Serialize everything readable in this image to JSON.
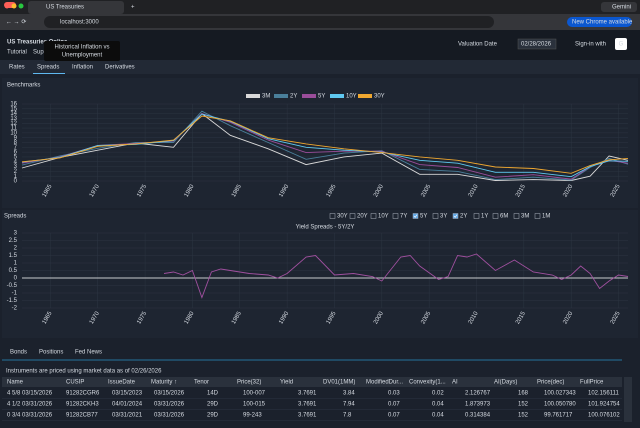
{
  "browser": {
    "tab_title": "US Treasuries",
    "new_tab": "+",
    "gemini": "Gemini",
    "url": "localhost:3000",
    "update_button": "New Chrome available"
  },
  "header": {
    "title": "US Treasuries Online",
    "links": [
      "Tutorial",
      "Supp"
    ],
    "tooltip": [
      "Historical Inflation vs",
      "Unemployment"
    ],
    "valuation_label": "Valuation Date",
    "valuation_date": "02/28/2026",
    "sign_in": "Sign-in with",
    "sign_in_button": "G"
  },
  "tabs": {
    "items": [
      "Rates",
      "Spreads",
      "Inflation",
      "Derivatives"
    ],
    "active": 1
  },
  "chart_data": [
    {
      "type": "line",
      "title": "Benchmarks",
      "x": [
        1962,
        1966,
        1970,
        1974,
        1978,
        1981,
        1984,
        1988,
        1992,
        1996,
        2000,
        2004,
        2008,
        2012,
        2016,
        2020,
        2022,
        2024,
        2026
      ],
      "xlim": [
        1962,
        2026
      ],
      "xticks": [
        1965,
        1970,
        1975,
        1980,
        1985,
        1990,
        1995,
        2000,
        2005,
        2010,
        2015,
        2020,
        2025
      ],
      "ylim": [
        0,
        16
      ],
      "yticks": [
        0,
        1,
        2,
        3,
        4,
        5,
        6,
        7,
        8,
        9,
        10,
        11,
        12,
        13,
        14,
        15,
        16
      ],
      "grid": true,
      "series": [
        {
          "name": "3M",
          "color": "#d9d9d9",
          "values": [
            2.7,
            4.9,
            6.4,
            7.9,
            7,
            14,
            9.5,
            6.7,
            3.4,
            5,
            5.8,
            1.4,
            1.4,
            0.1,
            0.3,
            0.1,
            1,
            5.2,
            4.3
          ]
        },
        {
          "name": "2Y",
          "color": "#4a7f9a",
          "values": [
            3.3,
            5.2,
            6.8,
            8,
            8,
            14.5,
            11.5,
            8,
            4.5,
            5.8,
            6.3,
            2.4,
            2,
            0.3,
            0.8,
            0.2,
            2.8,
            4.7,
            3.5
          ]
        },
        {
          "name": "5Y",
          "color": "#9a4d9a",
          "values": [
            3.7,
            5,
            7.4,
            7.8,
            8.3,
            14,
            12.2,
            8.5,
            5.9,
            6.2,
            6.2,
            3.4,
            2.8,
            0.8,
            1.3,
            0.4,
            3,
            4.3,
            3.7
          ]
        },
        {
          "name": "10Y",
          "color": "#5fc8f0",
          "values": [
            3.9,
            4.9,
            7.4,
            7.6,
            8.4,
            13.9,
            12.4,
            8.8,
            7,
            6.4,
            6,
            4.3,
            3.7,
            1.8,
            1.8,
            0.9,
            3,
            4.2,
            4.1
          ]
        },
        {
          "name": "30Y",
          "color": "#f0a830",
          "values": [
            4,
            4.8,
            7.2,
            7.7,
            8.5,
            13.5,
            12.5,
            9,
            7.7,
            6.7,
            5.9,
            5,
            4.3,
            2.9,
            2.6,
            1.6,
            3.2,
            4.4,
            4.7
          ]
        }
      ]
    },
    {
      "type": "line",
      "section": "Spreads",
      "title": "Yield Spreads - 5Y/2Y",
      "checkboxes": [
        {
          "label": "30Y",
          "checked": false
        },
        {
          "label": "20Y",
          "checked": false
        },
        {
          "label": "10Y",
          "checked": false
        },
        {
          "label": "7Y",
          "checked": false
        },
        {
          "label": "5Y",
          "checked": true
        },
        {
          "label": "3Y",
          "checked": false
        },
        {
          "label": "2Y",
          "checked": true
        },
        {
          "label": "1Y",
          "checked": false
        },
        {
          "label": "6M",
          "checked": false
        },
        {
          "label": "3M",
          "checked": false
        },
        {
          "label": "1M",
          "checked": false
        }
      ],
      "x": [
        1977,
        1978,
        1979,
        1980,
        1981,
        1982,
        1983,
        1984,
        1986,
        1988,
        1989,
        1990,
        1992,
        1993,
        1995,
        1997,
        1999,
        2000,
        2002,
        2003,
        2004,
        2006,
        2007,
        2008,
        2009,
        2010,
        2012,
        2014,
        2016,
        2018,
        2019,
        2020,
        2021,
        2022,
        2023,
        2024,
        2025,
        2026
      ],
      "xlim": [
        1962,
        2026
      ],
      "xticks": [
        1965,
        1970,
        1975,
        1980,
        1985,
        1990,
        1995,
        2000,
        2005,
        2010,
        2015,
        2020,
        2025
      ],
      "ylim": [
        -2,
        3
      ],
      "yticks": [
        -2,
        -1.5,
        -1,
        -0.5,
        0,
        0.5,
        1,
        1.5,
        2,
        2.5,
        3
      ],
      "grid": true,
      "zero_line": true,
      "series": [
        {
          "name": "5Y/2Y",
          "color": "#a0509f",
          "values": [
            0.3,
            0.4,
            0.2,
            0.5,
            -1.3,
            0.4,
            0.6,
            0.5,
            0.3,
            0.2,
            0,
            0.3,
            1.4,
            1.5,
            0.2,
            0.3,
            0.1,
            -0.2,
            1.4,
            1.5,
            0.8,
            -0.1,
            0.1,
            1.5,
            1.4,
            1.6,
            0.5,
            1.2,
            0.4,
            0.2,
            -0.1,
            0.2,
            0.8,
            0.3,
            -0.7,
            -0.2,
            0.2,
            0.1
          ]
        }
      ]
    }
  ],
  "bottom_tabs": {
    "items": [
      "Bonds",
      "Positions",
      "Fed News"
    ],
    "active": 0
  },
  "note": "Instruments are priced using market data as of 02/26/2026",
  "table": {
    "columns": [
      "Name",
      "CUSIP",
      "IssueDate",
      "Maturity ↑",
      "Tenor",
      "Price(32)",
      "Yield",
      "DV01(1MM)",
      "ModifiedDur...",
      "Convexity(1...",
      "AI",
      "AI(Days)",
      "Price(dec)",
      "FullPrice"
    ],
    "rows": [
      [
        "4 5/8 03/15/2026",
        "91282CGR6",
        "03/15/2023",
        "03/15/2026",
        "14D",
        "100-007",
        "3.7691",
        "3.84",
        "0.03",
        "0.02",
        "2.126767",
        "168",
        "100.027343",
        "102.156111"
      ],
      [
        "4 1/2 03/31/2026",
        "91282CKH3",
        "04/01/2024",
        "03/31/2026",
        "29D",
        "100-015",
        "3.7691",
        "7.94",
        "0.07",
        "0.04",
        "1.873973",
        "152",
        "100.050780",
        "101.924754"
      ],
      [
        "0 3/4 03/31/2026",
        "91282CB77",
        "03/31/2021",
        "03/31/2026",
        "29D",
        "99-243",
        "3.7691",
        "7.8",
        "0.07",
        "0.04",
        "0.314384",
        "152",
        "99.761717",
        "100.076102"
      ]
    ]
  }
}
